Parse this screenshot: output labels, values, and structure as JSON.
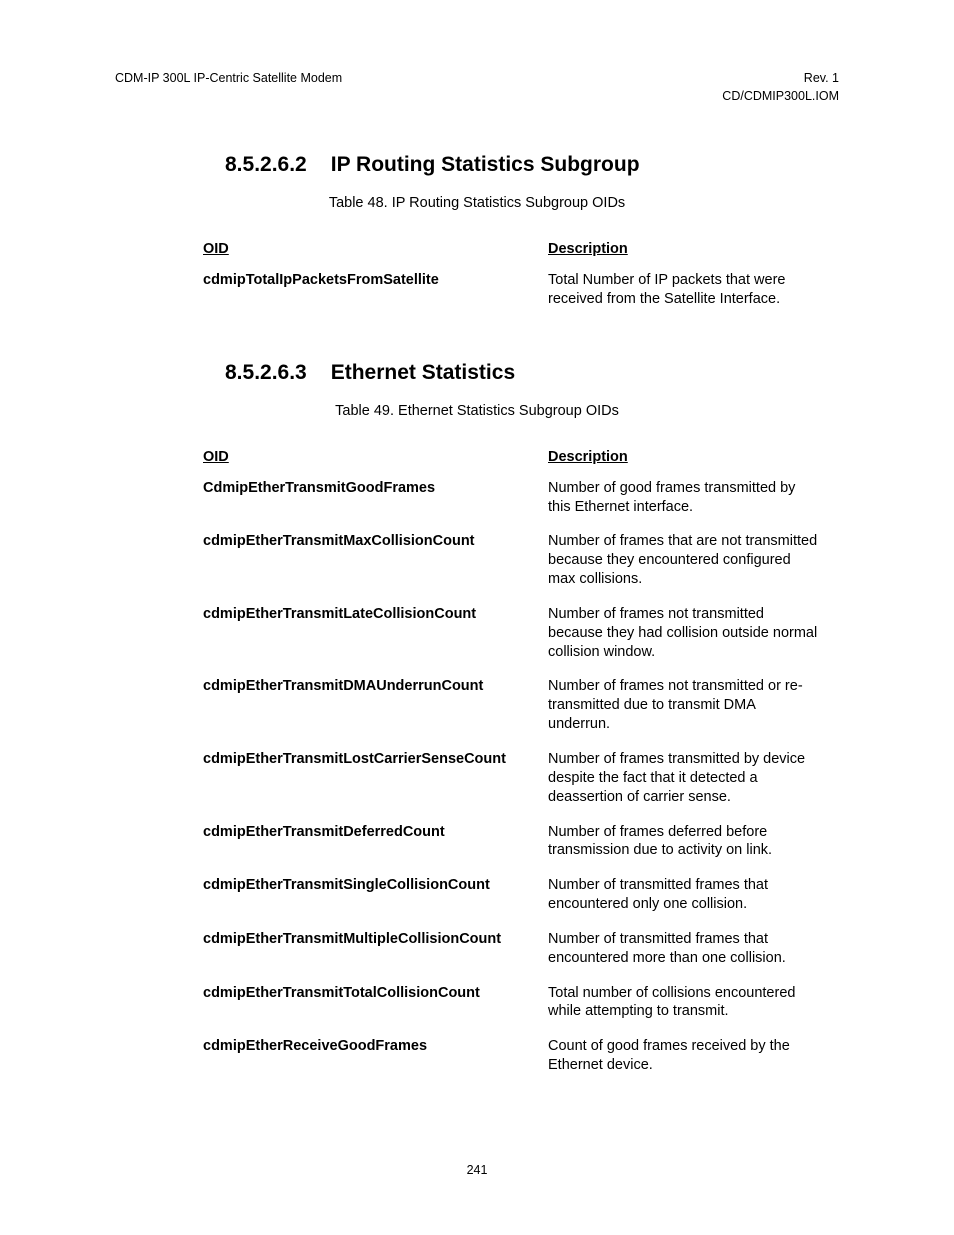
{
  "header": {
    "left": "CDM-IP 300L IP-Centric Satellite Modem",
    "right_line1": "Rev. 1",
    "right_line2": "CD/CDMIP300L.IOM"
  },
  "section1": {
    "number": "8.5.2.6.2",
    "title": "IP Routing Statistics Subgroup",
    "caption": "Table 48. IP Routing Statistics Subgroup OIDs",
    "col_oid": "OID",
    "col_desc": "Description",
    "rows": [
      {
        "oid": "cdmipTotalIpPacketsFromSatellite",
        "desc": "Total Number of IP packets that were received from the Satellite Interface."
      }
    ]
  },
  "section2": {
    "number": "8.5.2.6.3",
    "title": "Ethernet Statistics",
    "caption": "Table 49. Ethernet Statistics Subgroup OIDs",
    "col_oid": "OID",
    "col_desc": "Description",
    "rows": [
      {
        "oid": "CdmipEtherTransmitGoodFrames",
        "desc": "Number of good frames transmitted by this Ethernet interface."
      },
      {
        "oid": "cdmipEtherTransmitMaxCollisionCount",
        "desc": "Number of frames that are not transmitted because they encountered configured max collisions."
      },
      {
        "oid": "cdmipEtherTransmitLateCollisionCount",
        "desc": "Number of frames not transmitted because they had collision outside normal collision window."
      },
      {
        "oid": "cdmipEtherTransmitDMAUnderrunCount",
        "desc": "Number of frames not transmitted or re-transmitted due to transmit DMA underrun."
      },
      {
        "oid": "cdmipEtherTransmitLostCarrierSenseCount",
        "desc": "Number of frames transmitted by device despite the fact that it detected a deassertion of carrier sense."
      },
      {
        "oid": "cdmipEtherTransmitDeferredCount",
        "desc": "Number of frames deferred before transmission due to activity on link."
      },
      {
        "oid": "cdmipEtherTransmitSingleCollisionCount",
        "desc": "Number of transmitted frames that encountered only one collision."
      },
      {
        "oid": "cdmipEtherTransmitMultipleCollisionCount",
        "desc": "Number of transmitted frames that encountered more than one collision."
      },
      {
        "oid": "cdmipEtherTransmitTotalCollisionCount",
        "desc": "Total number of collisions encountered while attempting to transmit."
      },
      {
        "oid": "cdmipEtherReceiveGoodFrames",
        "desc": "Count of good frames received by the Ethernet device."
      }
    ]
  },
  "page_number": "241"
}
